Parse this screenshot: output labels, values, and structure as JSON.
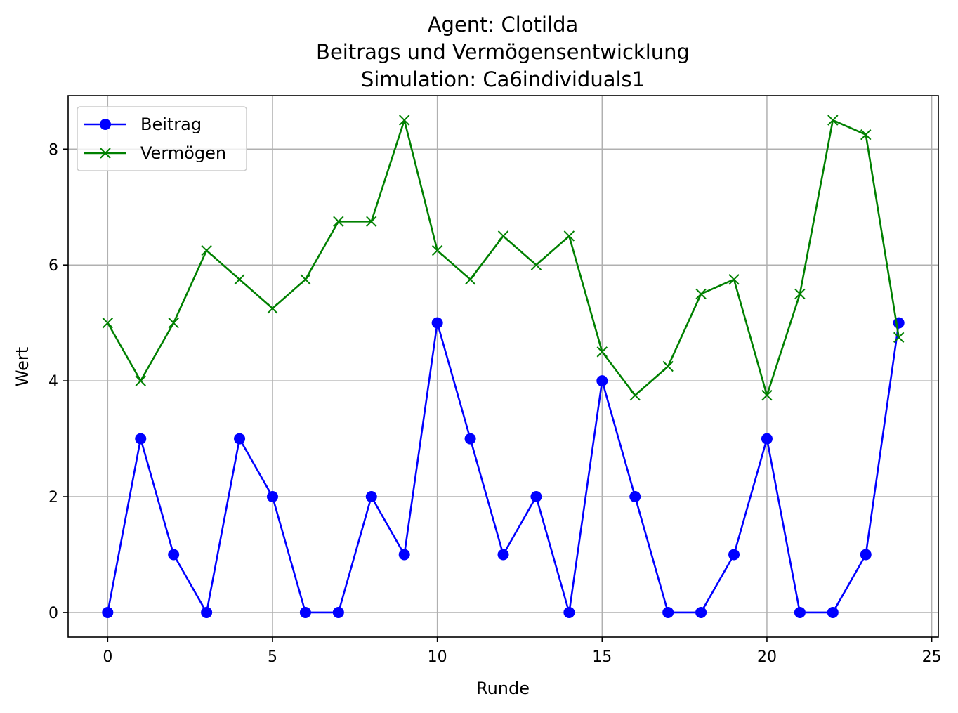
{
  "chart_data": {
    "type": "line",
    "title_lines": [
      "Agent: Clotilda",
      "Beitrags und Vermögensentwicklung",
      "Simulation: Ca6individuals1"
    ],
    "xlabel": "Runde",
    "ylabel": "Wert",
    "xlim": [
      -1.2,
      25.2
    ],
    "ylim": [
      -0.425,
      8.925
    ],
    "xticks": [
      0,
      5,
      10,
      15,
      20,
      25
    ],
    "yticks": [
      0,
      2,
      4,
      6,
      8
    ],
    "grid": true,
    "legend_position": "top-left",
    "x": [
      0,
      1,
      2,
      3,
      4,
      5,
      6,
      7,
      8,
      9,
      10,
      11,
      12,
      13,
      14,
      15,
      16,
      17,
      18,
      19,
      20,
      21,
      22,
      23,
      24
    ],
    "series": [
      {
        "name": "Beitrag",
        "color": "#0000ff",
        "marker": "circle",
        "values": [
          0,
          3,
          1,
          0,
          3,
          2,
          0,
          0,
          2,
          1,
          5,
          3,
          1,
          2,
          0,
          4,
          2,
          0,
          0,
          1,
          3,
          0,
          0,
          1,
          5
        ]
      },
      {
        "name": "Vermögen",
        "color": "#008000",
        "marker": "x",
        "values": [
          5,
          4,
          5,
          6.25,
          5.75,
          5.25,
          5.75,
          6.75,
          6.75,
          8.5,
          6.25,
          5.75,
          6.5,
          6,
          6.5,
          4.5,
          3.75,
          4.25,
          5.5,
          5.75,
          3.75,
          5.5,
          8.5,
          8.25,
          4.75
        ]
      }
    ]
  }
}
